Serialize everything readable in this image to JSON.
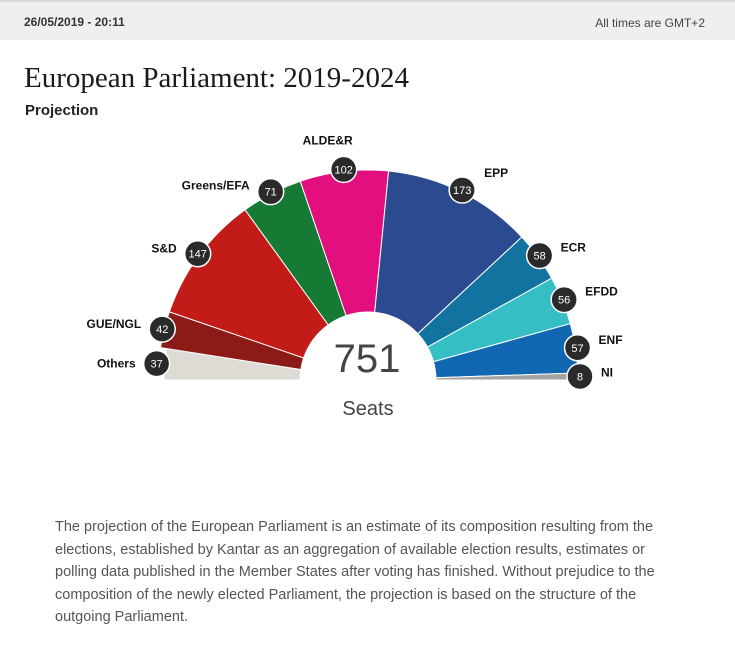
{
  "header": {
    "timestamp": "26/05/2019 - 20:11",
    "timezone": "All times are GMT+2"
  },
  "page": {
    "title": "European Parliament: 2019-2024",
    "subtitle": "Projection"
  },
  "chart_data": {
    "type": "pie",
    "subtype": "parliament-hemicycle",
    "total": 751,
    "total_label": "751",
    "unit_label": "Seats",
    "series": [
      {
        "name": "Others",
        "value": 37,
        "color": "#dedbd5"
      },
      {
        "name": "GUE/NGL",
        "value": 42,
        "color": "#8c1a16"
      },
      {
        "name": "S&D",
        "value": 147,
        "color": "#c21b18"
      },
      {
        "name": "Greens/EFA",
        "value": 71,
        "color": "#177a34"
      },
      {
        "name": "ALDE&R",
        "value": 102,
        "color": "#e30f7e"
      },
      {
        "name": "EPP",
        "value": 173,
        "color": "#2b4a8f"
      },
      {
        "name": "ECR",
        "value": 58,
        "color": "#1272a0"
      },
      {
        "name": "EFDD",
        "value": 56,
        "color": "#35bfc4"
      },
      {
        "name": "ENF",
        "value": 57,
        "color": "#1167b2"
      },
      {
        "name": "NI",
        "value": 8,
        "color": "#a3a3a3"
      }
    ],
    "legend": "labels-on-slices"
  },
  "description": "The projection of the European Parliament is an estimate of its composition resulting from the elections, established by Kantar as an aggregation of available election results, estimates or polling data published in the Member States after voting has finished. Without prejudice to the composition of the newly elected Parliament, the projection is based on the structure of the outgoing Parliament."
}
